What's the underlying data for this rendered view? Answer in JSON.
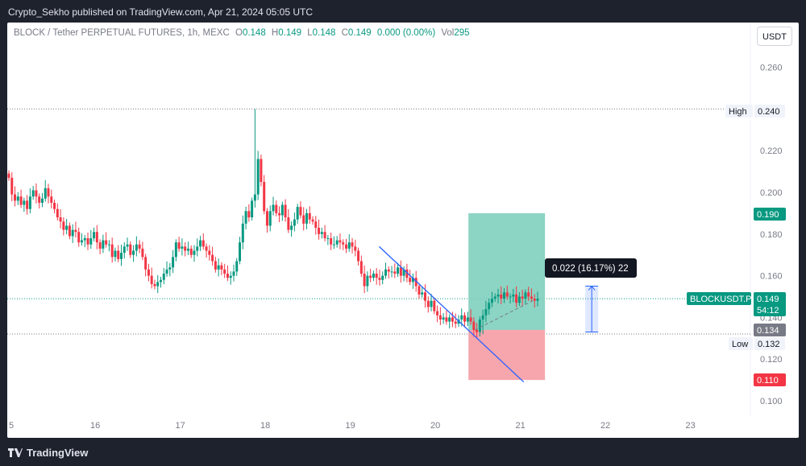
{
  "header": {
    "publisher_line": "Crypto_Sekho published on TradingView.com, Apr 21, 2024 05:05 UTC"
  },
  "legend": {
    "symbol": "BLOCK / Tether PERPETUAL FUTURES, 1h, MEXC",
    "o_label": "O",
    "o_value": "0.148",
    "h_label": "H",
    "h_value": "0.149",
    "l_label": "L",
    "l_value": "0.148",
    "c_label": "C",
    "c_value": "0.149",
    "change": "0.000 (0.00%)",
    "vol_label": "Vol",
    "vol_value": "295"
  },
  "currency_button": "USDT",
  "footer": {
    "logo_text": "TradingView",
    "logo_icon": "tradingview-logo-icon"
  },
  "colors": {
    "up": "#089981",
    "down": "#f23645",
    "trend": "#2962ff",
    "profit_zone": "#7fcfbc",
    "loss_zone": "#f7a1a9",
    "measure": "#2962ff"
  },
  "chart_data": {
    "type": "candlestick",
    "x_tick_labels": [
      "5",
      "16",
      "17",
      "18",
      "19",
      "20",
      "21",
      "22",
      "23"
    ],
    "y_tick_labels": [
      "0.260",
      "0.240",
      "0.220",
      "0.200",
      "0.180",
      "0.160",
      "0.140",
      "0.120",
      "0.100"
    ],
    "ylim": [
      0.095,
      0.27
    ],
    "high": {
      "label": "High",
      "value": "0.240"
    },
    "low": {
      "label": "Low",
      "value": "0.132"
    },
    "current_price": {
      "symbol": "BLOCKUSDT.P",
      "value": "0.149",
      "countdown": "54:12"
    },
    "price_tags": {
      "entry": "0.134",
      "target": "0.190",
      "stop": "0.110"
    },
    "measure_label": "0.022 (16.17%) 22",
    "position": {
      "entry": 0.134,
      "target": 0.19,
      "stop": 0.11,
      "start_day": 20.4,
      "end_day": 21.3
    },
    "trendline": {
      "start": {
        "day": 19.35,
        "price": 0.174
      },
      "end": {
        "day": 21.05,
        "price": 0.109
      }
    },
    "measure": {
      "day": 21.85,
      "from": 0.133,
      "to": 0.155
    },
    "closes": [
      0.207,
      0.199,
      0.196,
      0.198,
      0.194,
      0.196,
      0.192,
      0.198,
      0.201,
      0.198,
      0.195,
      0.197,
      0.202,
      0.198,
      0.195,
      0.192,
      0.188,
      0.186,
      0.182,
      0.184,
      0.179,
      0.182,
      0.181,
      0.176,
      0.177,
      0.178,
      0.175,
      0.178,
      0.181,
      0.176,
      0.173,
      0.177,
      0.175,
      0.175,
      0.169,
      0.172,
      0.168,
      0.171,
      0.174,
      0.175,
      0.17,
      0.172,
      0.175,
      0.173,
      0.169,
      0.163,
      0.16,
      0.156,
      0.155,
      0.157,
      0.158,
      0.161,
      0.163,
      0.164,
      0.169,
      0.176,
      0.173,
      0.174,
      0.172,
      0.173,
      0.17,
      0.172,
      0.174,
      0.177,
      0.174,
      0.172,
      0.17,
      0.167,
      0.163,
      0.165,
      0.163,
      0.161,
      0.159,
      0.16,
      0.162,
      0.167,
      0.176,
      0.185,
      0.191,
      0.188,
      0.196,
      0.199,
      0.216,
      0.205,
      0.191,
      0.184,
      0.191,
      0.194,
      0.19,
      0.189,
      0.194,
      0.188,
      0.182,
      0.184,
      0.187,
      0.193,
      0.189,
      0.185,
      0.19,
      0.187,
      0.186,
      0.183,
      0.18,
      0.181,
      0.178,
      0.178,
      0.175,
      0.175,
      0.177,
      0.176,
      0.175,
      0.173,
      0.176,
      0.174,
      0.172,
      0.167,
      0.161,
      0.155,
      0.16,
      0.159,
      0.161,
      0.159,
      0.158,
      0.16,
      0.163,
      0.162,
      0.162,
      0.161,
      0.164,
      0.16,
      0.163,
      0.159,
      0.157,
      0.159,
      0.155,
      0.151,
      0.152,
      0.148,
      0.145,
      0.148,
      0.143,
      0.141,
      0.139,
      0.14,
      0.138,
      0.14,
      0.138,
      0.137,
      0.139,
      0.141,
      0.138,
      0.14,
      0.138,
      0.134,
      0.133,
      0.139,
      0.141,
      0.144,
      0.147,
      0.149,
      0.15,
      0.151,
      0.149,
      0.152,
      0.15,
      0.15,
      0.151,
      0.147,
      0.15,
      0.149,
      0.152,
      0.15,
      0.149,
      0.148,
      0.149
    ]
  }
}
